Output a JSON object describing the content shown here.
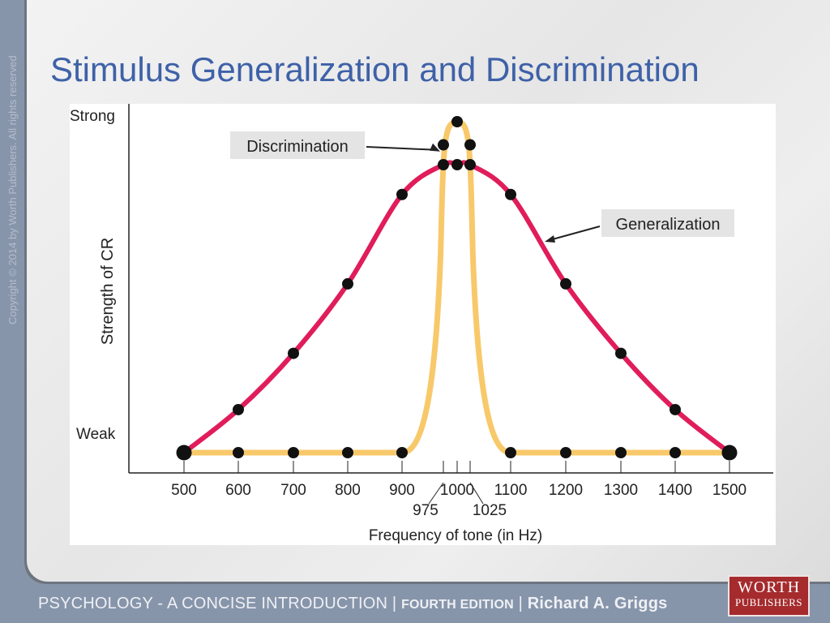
{
  "slide": {
    "title": "Stimulus Generalization and Discrimination",
    "copyright": "Copyright © 2014 by Worth Publishers. All rights reserved",
    "footer": {
      "subject": "PSYCHOLOGY - A CONCISE INTRODUCTION",
      "separator1": " | ",
      "edition": "FOURTH EDITION",
      "separator2": " | ",
      "author": "Richard A. Griggs"
    },
    "logo": {
      "line1": "WORTH",
      "line2": "PUBLISHERS"
    }
  },
  "chart_data": {
    "type": "line",
    "xlabel": "Frequency of tone (in Hz)",
    "ylabel": "Strength of CR",
    "y_tick_labels": {
      "top": "Strong",
      "bottom": "Weak"
    },
    "x_ticks": [
      500,
      600,
      700,
      800,
      900,
      975,
      1000,
      1025,
      1100,
      1200,
      1300,
      1400,
      1500
    ],
    "x_tick_labels": [
      "500",
      "600",
      "700",
      "800",
      "900",
      "975",
      "1000",
      "1025",
      "1100",
      "1200",
      "1300",
      "1400",
      "1500"
    ],
    "xlim": [
      500,
      1500
    ],
    "ylim": [
      0,
      1
    ],
    "colors": {
      "generalization": "#e01d5a",
      "discrimination": "#f8c96a",
      "markers": "#111111"
    },
    "series": [
      {
        "name": "Generalization",
        "x": [
          500,
          600,
          700,
          800,
          900,
          975,
          1000,
          1025,
          1100,
          1200,
          1300,
          1400,
          1500
        ],
        "values": [
          0.0,
          0.13,
          0.3,
          0.51,
          0.78,
          0.87,
          0.87,
          0.87,
          0.78,
          0.51,
          0.3,
          0.13,
          0.0
        ]
      },
      {
        "name": "Discrimination",
        "x": [
          500,
          600,
          700,
          800,
          900,
          975,
          1000,
          1025,
          1100,
          1200,
          1300,
          1400,
          1500
        ],
        "values": [
          0.0,
          0.0,
          0.0,
          0.0,
          0.0,
          0.93,
          1.0,
          0.93,
          0.0,
          0.0,
          0.0,
          0.0,
          0.0
        ]
      }
    ],
    "annotations": [
      {
        "text": "Discrimination",
        "points_to": {
          "x": 975,
          "y": 0.9
        }
      },
      {
        "text": "Generalization",
        "points_to": {
          "x": 1160,
          "y": 0.65
        }
      }
    ]
  }
}
